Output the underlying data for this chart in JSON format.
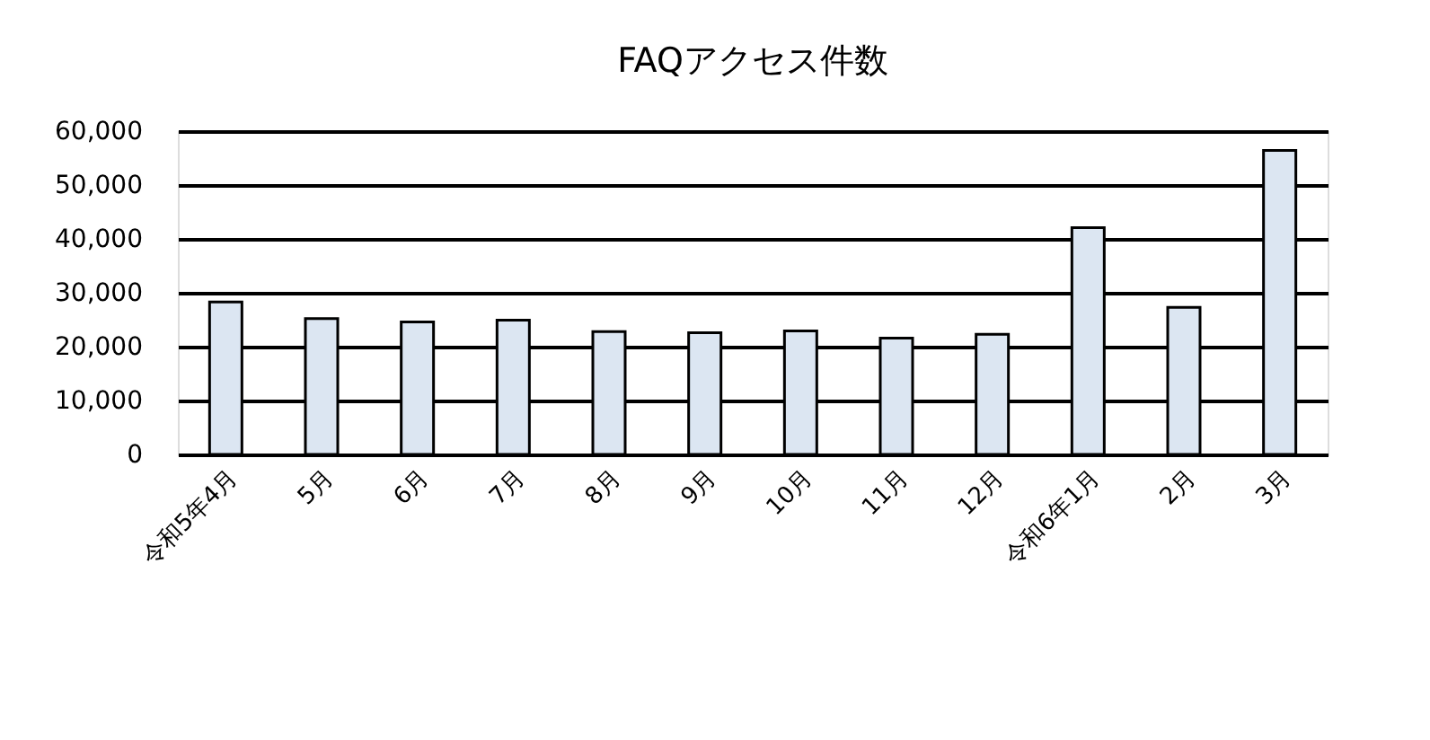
{
  "chart_data": {
    "type": "bar",
    "title": "FAQアクセス件数",
    "categories": [
      "令和5年4月",
      "5月",
      "6月",
      "7月",
      "8月",
      "9月",
      "10月",
      "11月",
      "12月",
      "令和6年1月",
      "2月",
      "3月"
    ],
    "values": [
      28300,
      25200,
      24600,
      24900,
      22800,
      22600,
      22900,
      21600,
      22300,
      42100,
      27300,
      56400
    ],
    "color": "#dce6f2",
    "ylim": [
      0,
      60000
    ],
    "yticks": [
      {
        "value": 0,
        "label": "0"
      },
      {
        "value": 10000,
        "label": "10,000"
      },
      {
        "value": 20000,
        "label": "20,000"
      },
      {
        "value": 30000,
        "label": "30,000"
      },
      {
        "value": 40000,
        "label": "40,000"
      },
      {
        "value": 50000,
        "label": "50,000"
      },
      {
        "value": 60000,
        "label": "60,000"
      }
    ],
    "grid": "y"
  }
}
